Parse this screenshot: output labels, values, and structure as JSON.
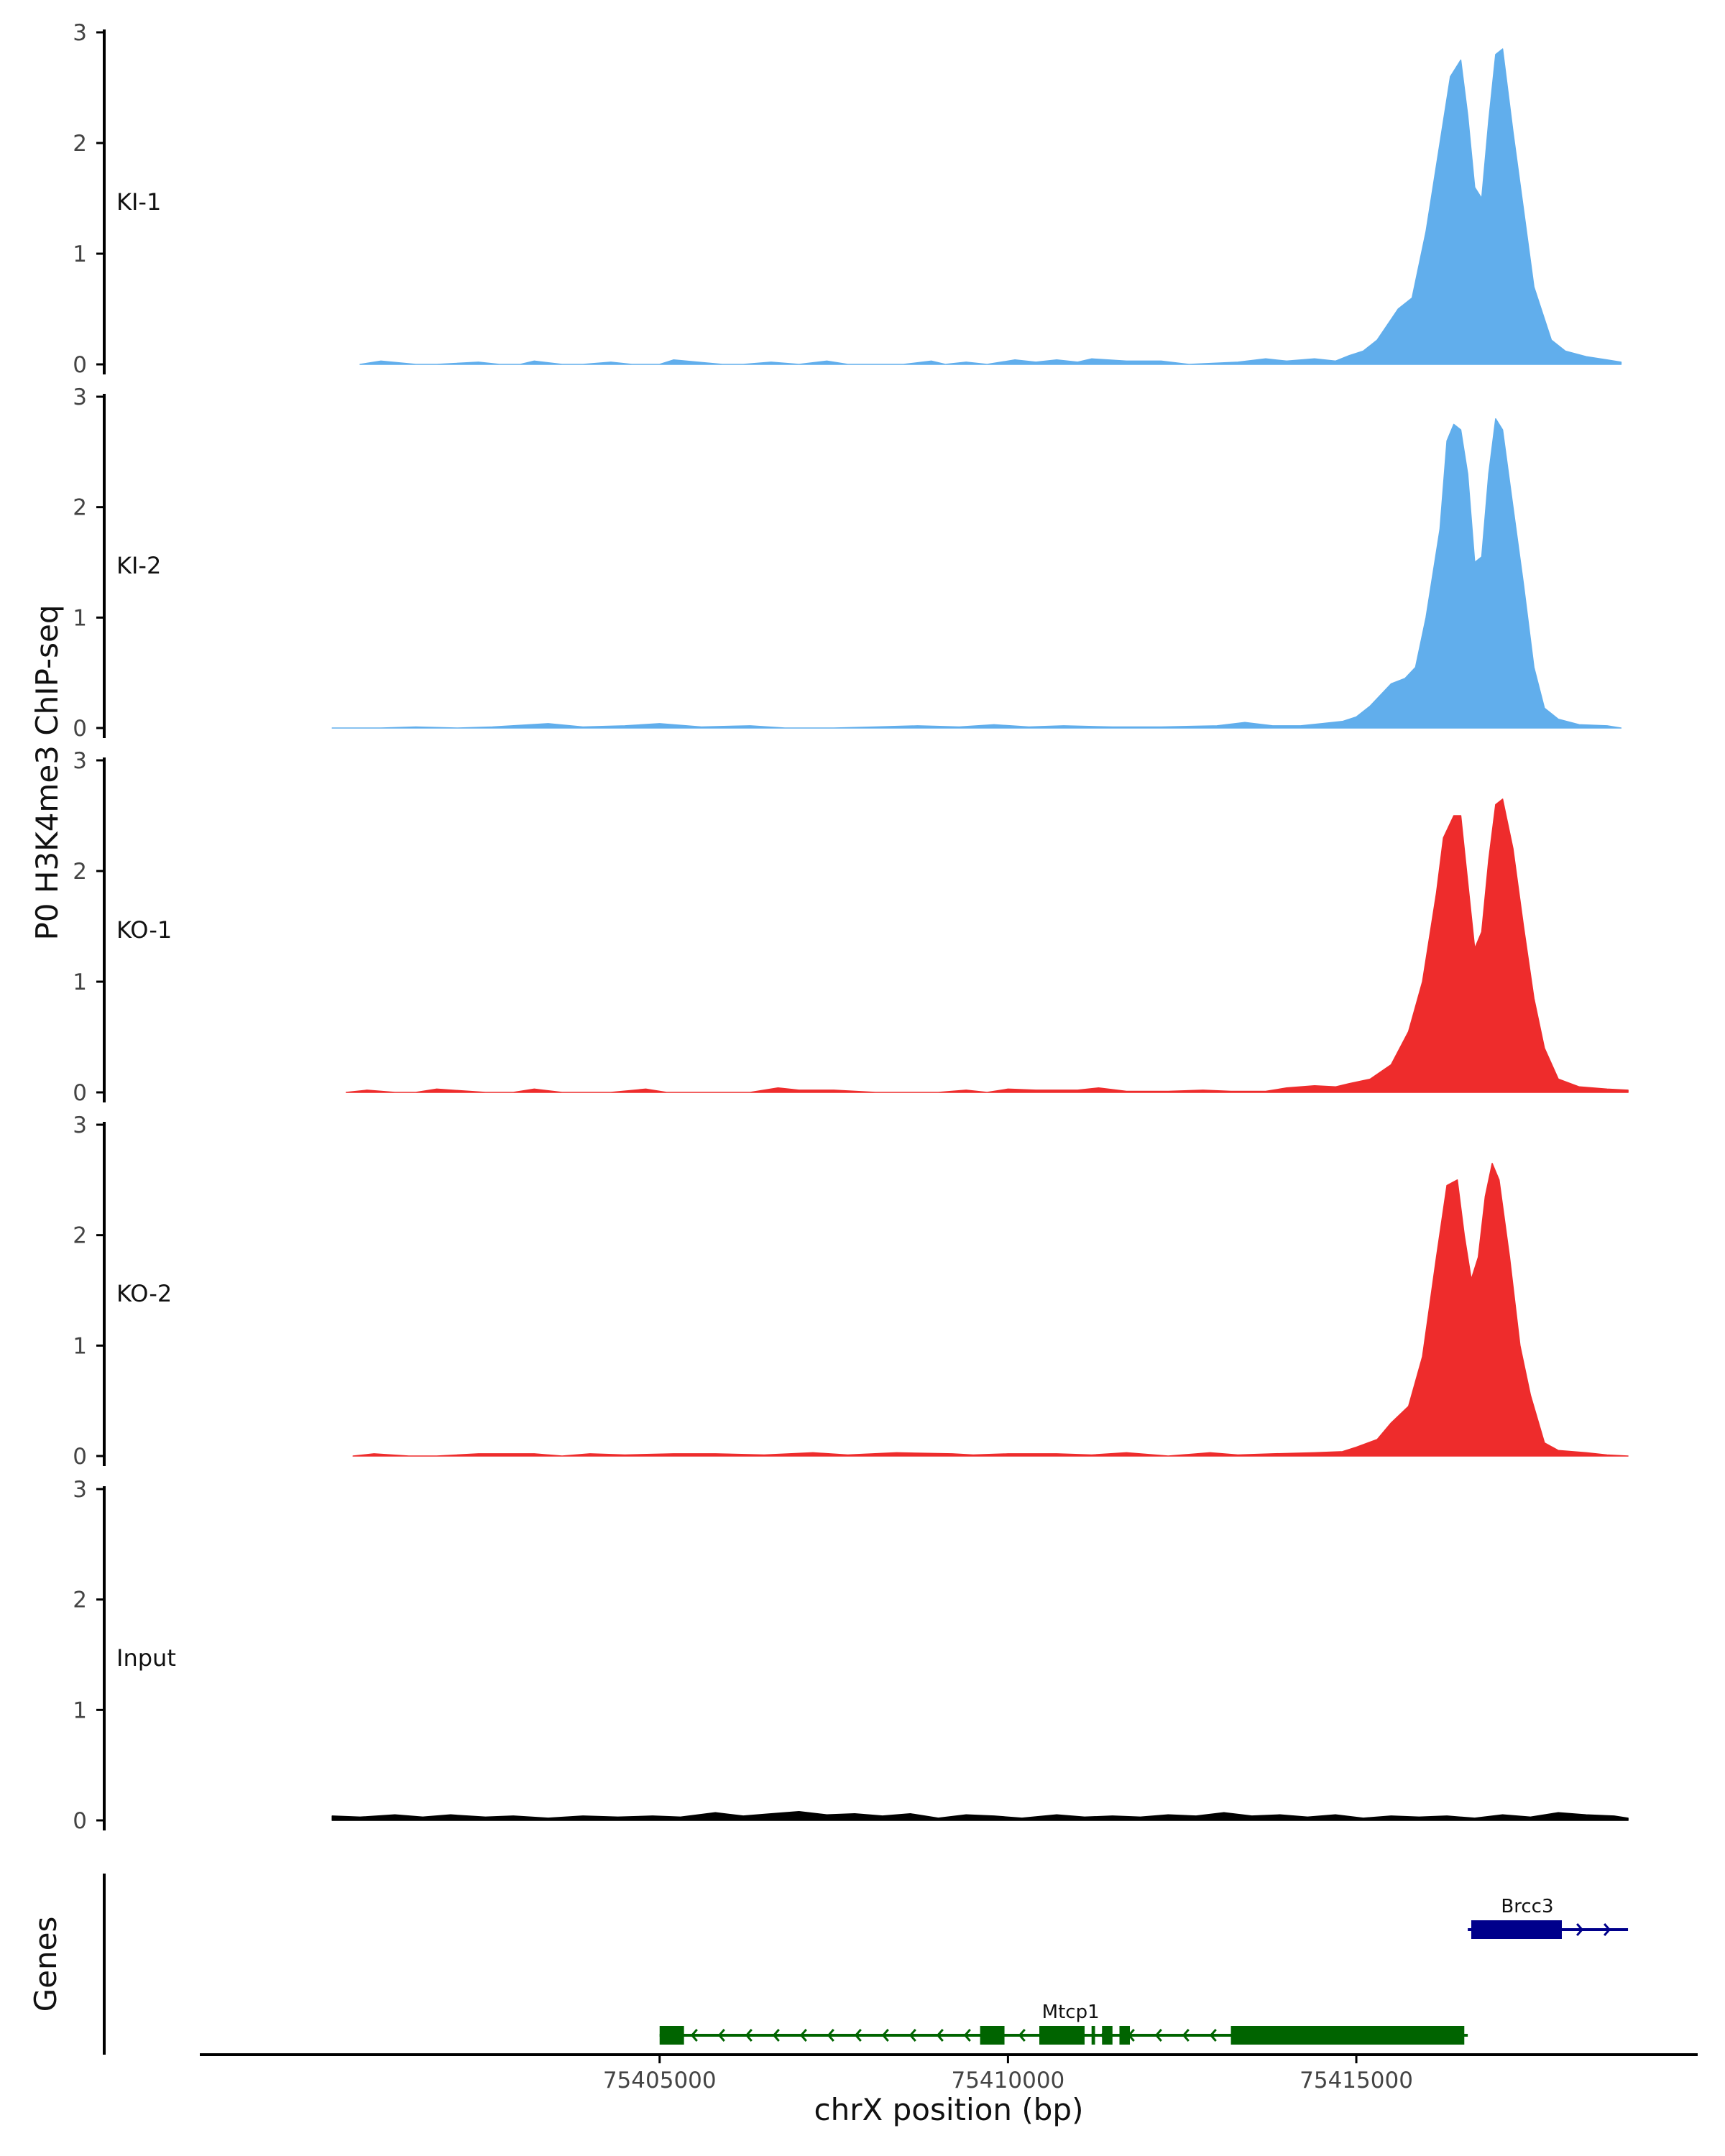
{
  "chart_data": {
    "type": "area",
    "ylabel": "P0 H3K4me3 ChIP-seq",
    "xlabel": "chrX position (bp)",
    "genes_label": "Genes",
    "xlim": [
      75398400,
      75419900
    ],
    "x_ticks": [
      75405000,
      75410000,
      75415000
    ],
    "x_tick_labels": [
      "75405000",
      "75410000",
      "75415000"
    ],
    "ylim": [
      0,
      3
    ],
    "y_ticks": [
      0,
      1,
      2,
      3
    ],
    "y_tick_labels": [
      "0",
      "1",
      "2",
      "3"
    ],
    "colors": {
      "KI": "#61AEEC",
      "KO": "#EE2C2C",
      "Input": "#000000",
      "minus_gene": "#006400",
      "plus_gene": "#00008B"
    },
    "tracks": [
      {
        "name": "KI-1",
        "color": "#61AEEC",
        "x": [
          75400700,
          75401000,
          75401500,
          75401800,
          75402400,
          75402700,
          75403000,
          75403200,
          75403600,
          75403900,
          75404300,
          75404600,
          75405000,
          75405200,
          75405900,
          75406200,
          75406600,
          75407000,
          75407400,
          75407700,
          75408500,
          75408900,
          75409100,
          75409400,
          75409700,
          75410100,
          75410400,
          75410700,
          75411000,
          75411200,
          75411700,
          75412200,
          75412600,
          75413300,
          75413700,
          75414000,
          75414400,
          75414700,
          75414900,
          75415100,
          75415300,
          75415600,
          75415800,
          75416000,
          75416200,
          75416350,
          75416500,
          75416600,
          75416700,
          75416800,
          75416900,
          75417000,
          75417100,
          75417250,
          75417400,
          75417550,
          75417800,
          75418000,
          75418300,
          75418600,
          75418800
        ],
        "y": [
          0,
          0.03,
          0,
          0,
          0.02,
          0,
          0,
          0.03,
          0,
          0,
          0.02,
          0,
          0,
          0.04,
          0,
          0,
          0.02,
          0,
          0.03,
          0,
          0,
          0.03,
          0,
          0.02,
          0,
          0.04,
          0.02,
          0.04,
          0.02,
          0.05,
          0.03,
          0.03,
          0,
          0.02,
          0.05,
          0.03,
          0.05,
          0.03,
          0.08,
          0.12,
          0.22,
          0.5,
          0.6,
          1.2,
          2.0,
          2.6,
          2.75,
          2.25,
          1.6,
          1.5,
          2.2,
          2.8,
          2.85,
          2.1,
          1.4,
          0.7,
          0.22,
          0.12,
          0.07,
          0.04,
          0.02
        ]
      },
      {
        "name": "KI-2",
        "color": "#61AEEC",
        "x": [
          75400300,
          75401000,
          75401500,
          75402100,
          75402600,
          75403400,
          75403900,
          75404500,
          75405000,
          75405600,
          75406300,
          75406800,
          75407500,
          75408100,
          75408700,
          75409300,
          75409800,
          75410300,
          75410800,
          75411500,
          75412200,
          75413000,
          75413400,
          75413800,
          75414200,
          75414500,
          75414800,
          75415000,
          75415200,
          75415500,
          75415700,
          75415850,
          75416000,
          75416200,
          75416300,
          75416400,
          75416500,
          75416600,
          75416700,
          75416800,
          75416900,
          75417000,
          75417100,
          75417250,
          75417400,
          75417550,
          75417700,
          75417900,
          75418200,
          75418600,
          75418800
        ],
        "y": [
          0,
          0,
          0.01,
          0,
          0.01,
          0.04,
          0.01,
          0.02,
          0.04,
          0.01,
          0.02,
          0,
          0,
          0.01,
          0.02,
          0.01,
          0.03,
          0.01,
          0.02,
          0.01,
          0.01,
          0.02,
          0.05,
          0.02,
          0.02,
          0.04,
          0.06,
          0.1,
          0.2,
          0.4,
          0.45,
          0.55,
          1.0,
          1.8,
          2.6,
          2.75,
          2.7,
          2.3,
          1.5,
          1.55,
          2.3,
          2.8,
          2.7,
          2.0,
          1.3,
          0.55,
          0.18,
          0.08,
          0.03,
          0.02,
          0
        ]
      },
      {
        "name": "KO-1",
        "color": "#EE2C2C",
        "x": [
          75400500,
          75400800,
          75401200,
          75401500,
          75401800,
          75402500,
          75402900,
          75403200,
          75403600,
          75404300,
          75404800,
          75405100,
          75405800,
          75406300,
          75406700,
          75407000,
          75407500,
          75408100,
          75408500,
          75409000,
          75409400,
          75409700,
          75410000,
          75410400,
          75411000,
          75411300,
          75411700,
          75412300,
          75412800,
          75413200,
          75413700,
          75414000,
          75414400,
          75414700,
          75414900,
          75415200,
          75415500,
          75415750,
          75415950,
          75416150,
          75416250,
          75416400,
          75416500,
          75416600,
          75416700,
          75416800,
          75416900,
          75417000,
          75417100,
          75417250,
          75417400,
          75417550,
          75417700,
          75417900,
          75418200,
          75418600,
          75418900
        ],
        "y": [
          0,
          0.02,
          0,
          0,
          0.03,
          0,
          0,
          0.03,
          0,
          0,
          0.03,
          0,
          0,
          0,
          0.04,
          0.02,
          0.02,
          0,
          0,
          0,
          0.02,
          0,
          0.03,
          0.02,
          0.02,
          0.04,
          0.01,
          0.01,
          0.02,
          0.01,
          0.01,
          0.04,
          0.06,
          0.05,
          0.08,
          0.12,
          0.25,
          0.55,
          1.0,
          1.8,
          2.3,
          2.5,
          2.5,
          1.9,
          1.3,
          1.45,
          2.1,
          2.6,
          2.65,
          2.2,
          1.5,
          0.85,
          0.4,
          0.12,
          0.05,
          0.03,
          0.02
        ]
      },
      {
        "name": "KO-2",
        "color": "#EE2C2C",
        "x": [
          75400600,
          75400900,
          75401400,
          75401800,
          75402400,
          75403200,
          75403600,
          75404000,
          75404500,
          75405200,
          75405800,
          75406500,
          75407200,
          75407700,
          75408400,
          75409200,
          75409500,
          75410000,
          75410700,
          75411200,
          75411700,
          75412300,
          75412900,
          75413300,
          75413800,
          75414400,
          75414800,
          75415000,
          75415300,
          75415500,
          75415750,
          75415950,
          75416150,
          75416300,
          75416450,
          75416550,
          75416650,
          75416750,
          75416850,
          75416950,
          75417050,
          75417200,
          75417350,
          75417500,
          75417700,
          75417900,
          75418300,
          75418600,
          75418900
        ],
        "y": [
          0,
          0.02,
          0,
          0,
          0.02,
          0.02,
          0,
          0.02,
          0.01,
          0.02,
          0.02,
          0.01,
          0.03,
          0.01,
          0.03,
          0.02,
          0.01,
          0.02,
          0.02,
          0.01,
          0.03,
          0,
          0.03,
          0.01,
          0.02,
          0.03,
          0.04,
          0.08,
          0.15,
          0.3,
          0.45,
          0.9,
          1.8,
          2.45,
          2.5,
          2.0,
          1.6,
          1.8,
          2.35,
          2.65,
          2.5,
          1.8,
          1.0,
          0.55,
          0.12,
          0.05,
          0.03,
          0.01,
          0
        ]
      },
      {
        "name": "Input",
        "color": "#000000",
        "x": [
          75400300,
          75400700,
          75401200,
          75401600,
          75402000,
          75402500,
          75402900,
          75403400,
          75403900,
          75404400,
          75404900,
          75405300,
          75405800,
          75406200,
          75406600,
          75407000,
          75407400,
          75407800,
          75408200,
          75408600,
          75409000,
          75409400,
          75409800,
          75410200,
          75410700,
          75411100,
          75411500,
          75411900,
          75412300,
          75412700,
          75413100,
          75413500,
          75413900,
          75414300,
          75414700,
          75415100,
          75415500,
          75415900,
          75416300,
          75416700,
          75417100,
          75417500,
          75417900,
          75418300,
          75418700,
          75418900
        ],
        "y": [
          0.04,
          0.03,
          0.05,
          0.03,
          0.05,
          0.03,
          0.04,
          0.02,
          0.04,
          0.03,
          0.04,
          0.03,
          0.07,
          0.04,
          0.06,
          0.08,
          0.05,
          0.06,
          0.04,
          0.06,
          0.02,
          0.05,
          0.04,
          0.02,
          0.05,
          0.03,
          0.04,
          0.03,
          0.05,
          0.04,
          0.07,
          0.04,
          0.05,
          0.03,
          0.05,
          0.02,
          0.04,
          0.03,
          0.04,
          0.02,
          0.05,
          0.03,
          0.07,
          0.05,
          0.04,
          0.02
        ]
      }
    ],
    "genes": [
      {
        "name": "Mtcp1",
        "strand": "-",
        "start": 75405000,
        "end": 75416600,
        "exons": [
          [
            75405000,
            75405350
          ],
          [
            75409600,
            75409950
          ],
          [
            75410450,
            75411100
          ],
          [
            75411200,
            75411250
          ],
          [
            75411350,
            75411500
          ],
          [
            75411600,
            75411750
          ],
          [
            75413200,
            75416550
          ]
        ]
      },
      {
        "name": "Brcc3",
        "strand": "+",
        "start": 75416600,
        "end": 75418900,
        "exons": [
          [
            75416650,
            75417950
          ]
        ]
      }
    ]
  }
}
